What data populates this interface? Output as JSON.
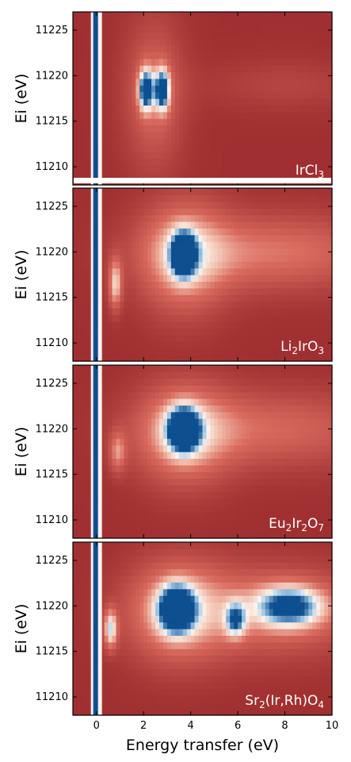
{
  "chart_data": {
    "type": "heatmap",
    "xlabel": "Energy transfer (eV)",
    "ylabel": "Ei (eV)",
    "xlim": [
      -1,
      10
    ],
    "ylim": [
      11208,
      11227
    ],
    "x_ticks": [
      "0",
      "2",
      "4",
      "6",
      "8",
      "10"
    ],
    "x_tick_values": [
      0,
      2,
      4,
      6,
      8,
      10
    ],
    "y_ticks": [
      "11210",
      "11215",
      "11220",
      "11225"
    ],
    "y_tick_values": [
      11210,
      11215,
      11220,
      11225
    ],
    "colormap": {
      "low": "#8b1a20",
      "mid": "#fbf3ee",
      "high": "#0d4f8f"
    },
    "panels": [
      {
        "label_parts": [
          {
            "t": "IrCl"
          },
          {
            "t": "3",
            "sub": true
          }
        ],
        "features": [
          {
            "x": 0.0,
            "y": 11218,
            "wx": 0.08,
            "wy": 30,
            "amp": 1.0
          },
          {
            "x": 2.1,
            "y": 11218.5,
            "wx": 0.22,
            "wy": 1.6,
            "amp": 0.85
          },
          {
            "x": 2.8,
            "y": 11218.5,
            "wx": 0.22,
            "wy": 1.6,
            "amp": 0.85
          },
          {
            "x": 2.45,
            "y": 11218,
            "wx": 0.9,
            "wy": 6,
            "amp": 0.3
          },
          {
            "x": 8.0,
            "y": 11219,
            "wx": 2.5,
            "wy": 2.0,
            "amp": 0.12
          }
        ]
      },
      {
        "label_parts": [
          {
            "t": "Li"
          },
          {
            "t": "2",
            "sub": true
          },
          {
            "t": "IrO"
          },
          {
            "t": "3",
            "sub": true
          }
        ],
        "features": [
          {
            "x": 0.0,
            "y": 11218,
            "wx": 0.08,
            "wy": 30,
            "amp": 1.0
          },
          {
            "x": 0.8,
            "y": 11216.5,
            "wx": 0.2,
            "wy": 2.0,
            "amp": 0.5
          },
          {
            "x": 3.7,
            "y": 11219.8,
            "wx": 0.35,
            "wy": 1.6,
            "amp": 0.95
          },
          {
            "x": 3.7,
            "y": 11219.5,
            "wx": 1.3,
            "wy": 4.5,
            "amp": 0.45
          },
          {
            "x": 7.5,
            "y": 11220,
            "wx": 3.5,
            "wy": 3.0,
            "amp": 0.35
          }
        ]
      },
      {
        "label_parts": [
          {
            "t": "Eu"
          },
          {
            "t": "2",
            "sub": true
          },
          {
            "t": "Ir"
          },
          {
            "t": "2",
            "sub": true
          },
          {
            "t": "O"
          },
          {
            "t": "7",
            "sub": true
          }
        ],
        "features": [
          {
            "x": 0.0,
            "y": 11218,
            "wx": 0.08,
            "wy": 30,
            "amp": 1.0
          },
          {
            "x": 0.9,
            "y": 11217.5,
            "wx": 0.25,
            "wy": 1.6,
            "amp": 0.35
          },
          {
            "x": 3.7,
            "y": 11220,
            "wx": 0.45,
            "wy": 1.6,
            "amp": 0.95
          },
          {
            "x": 3.7,
            "y": 11219.5,
            "wx": 1.4,
            "wy": 4.0,
            "amp": 0.45
          },
          {
            "x": 7.5,
            "y": 11220,
            "wx": 3.5,
            "wy": 3.0,
            "amp": 0.3
          }
        ]
      },
      {
        "label_parts": [
          {
            "t": "Sr"
          },
          {
            "t": "2",
            "sub": true
          },
          {
            "t": "(Ir,Rh)O"
          },
          {
            "t": "4",
            "sub": true
          }
        ],
        "features": [
          {
            "x": 0.0,
            "y": 11218,
            "wx": 0.08,
            "wy": 30,
            "amp": 1.0
          },
          {
            "x": 0.6,
            "y": 11217.5,
            "wx": 0.2,
            "wy": 1.5,
            "amp": 0.6
          },
          {
            "x": 3.4,
            "y": 11219.7,
            "wx": 0.5,
            "wy": 1.7,
            "amp": 0.95
          },
          {
            "x": 3.4,
            "y": 11219.5,
            "wx": 1.5,
            "wy": 4.0,
            "amp": 0.45
          },
          {
            "x": 5.9,
            "y": 11218.5,
            "wx": 0.3,
            "wy": 1.3,
            "amp": 0.55
          },
          {
            "x": 8.2,
            "y": 11220,
            "wx": 1.0,
            "wy": 1.6,
            "amp": 0.7
          },
          {
            "x": 7.5,
            "y": 11219.5,
            "wx": 3.0,
            "wy": 3.5,
            "amp": 0.35
          }
        ]
      }
    ]
  }
}
